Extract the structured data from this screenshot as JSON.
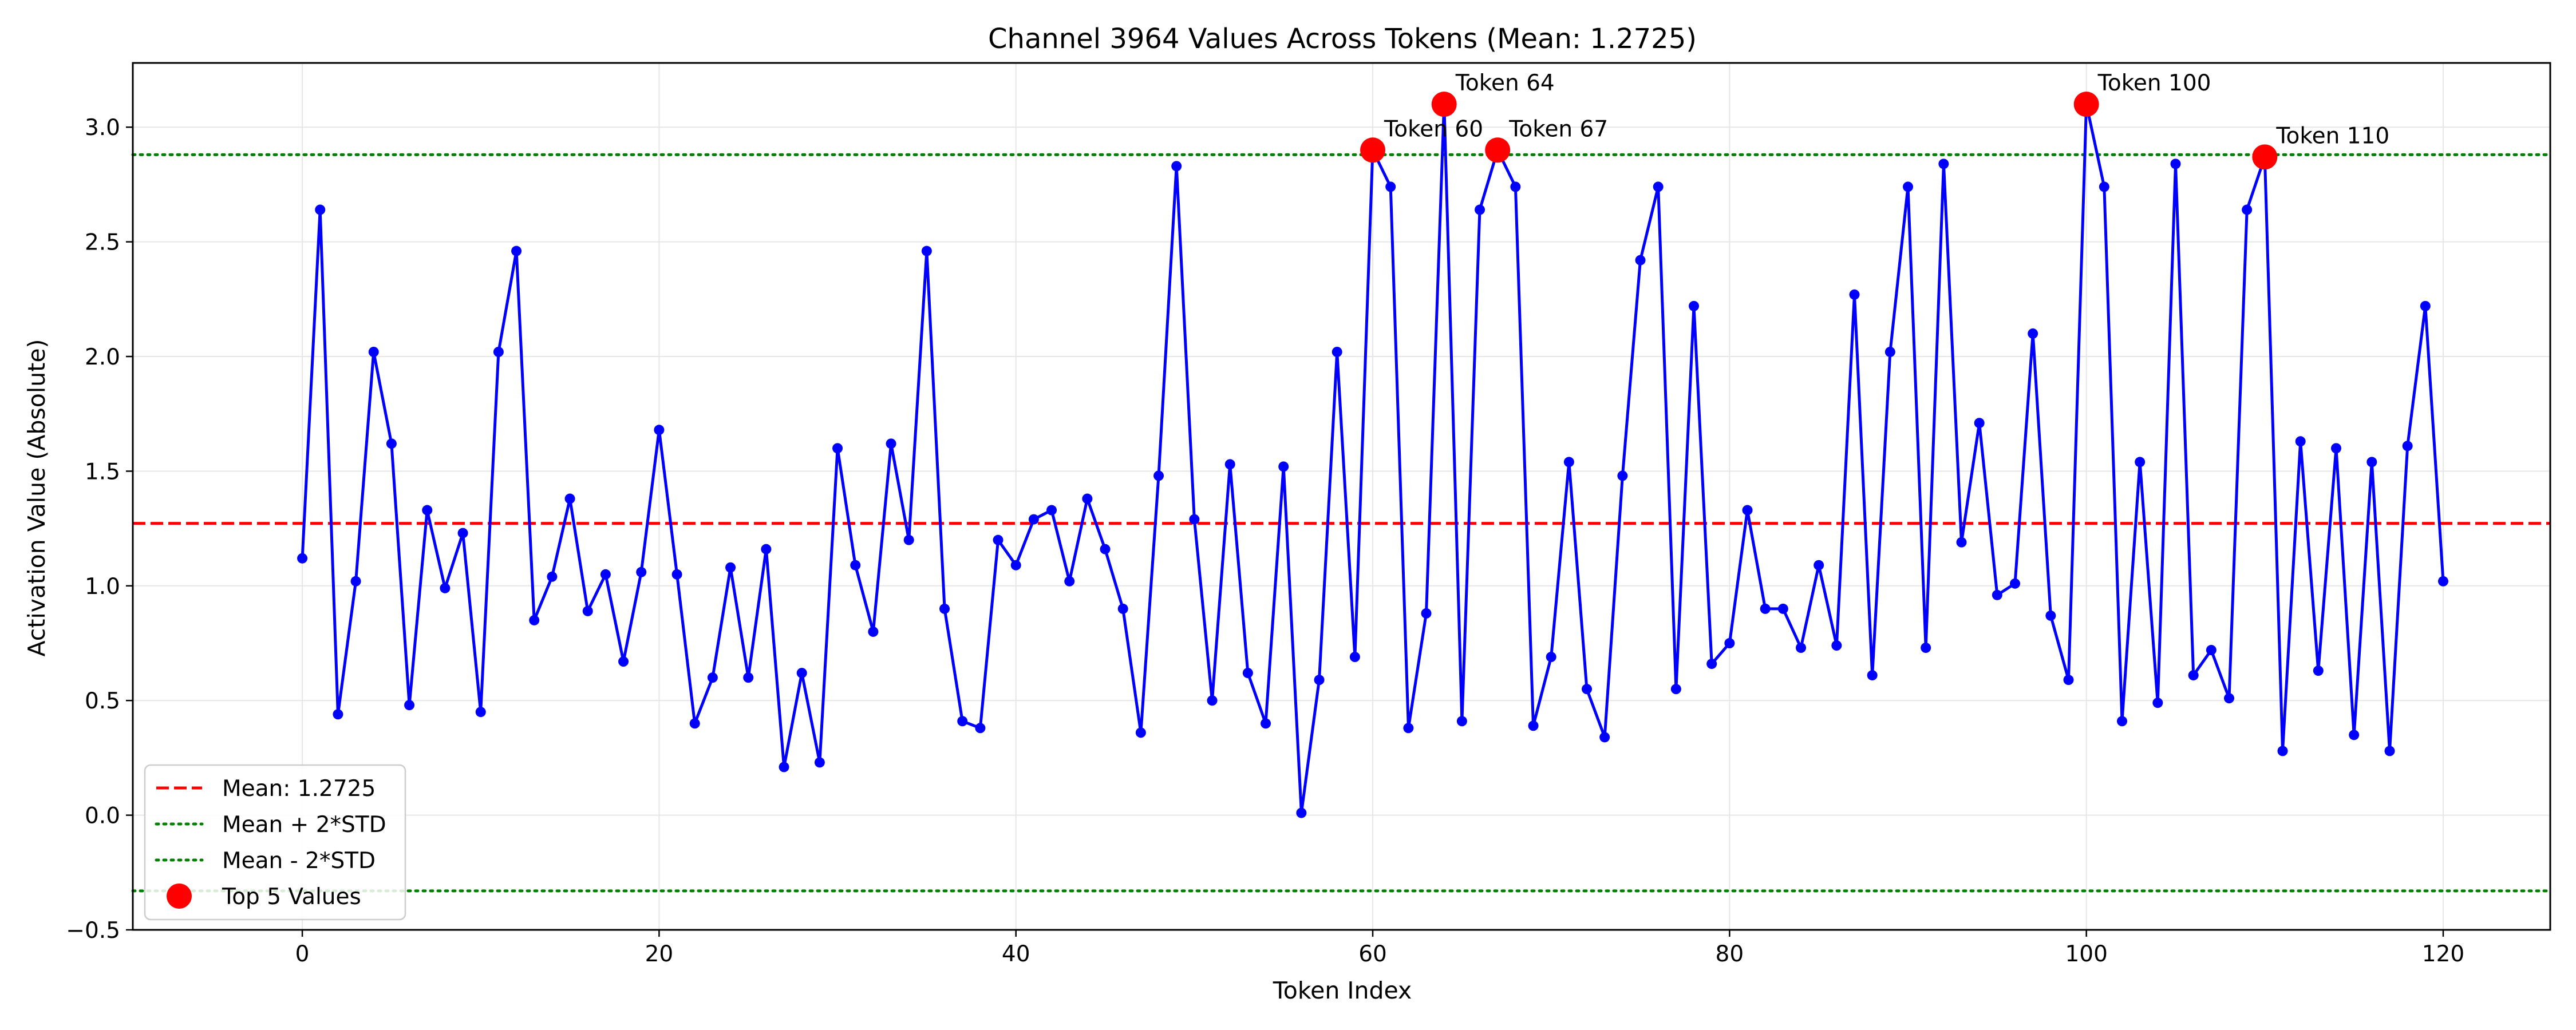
{
  "chart_data": {
    "type": "line",
    "title": "Channel 3964 Values Across Tokens (Mean: 1.2725)",
    "xlabel": "Token Index",
    "ylabel": "Activation Value (Absolute)",
    "xlim": [
      -9.5,
      126
    ],
    "ylim": [
      -0.5,
      3.28
    ],
    "xticks": [
      0,
      20,
      40,
      60,
      80,
      100,
      120
    ],
    "yticks": [
      -0.5,
      0.0,
      0.5,
      1.0,
      1.5,
      2.0,
      2.5,
      3.0
    ],
    "ytick_labels": [
      "−0.5",
      "0.0",
      "0.5",
      "1.0",
      "1.5",
      "2.0",
      "2.5",
      "3.0"
    ],
    "grid": true,
    "legend_position": "bottom-left",
    "series": [
      {
        "name": "",
        "color": "#0000ff",
        "marker": "circle",
        "x": [
          0,
          1,
          2,
          3,
          4,
          5,
          6,
          7,
          8,
          9,
          10,
          11,
          12,
          13,
          14,
          15,
          16,
          17,
          18,
          19,
          20,
          21,
          22,
          23,
          24,
          25,
          26,
          27,
          28,
          29,
          30,
          31,
          32,
          33,
          34,
          35,
          36,
          37,
          38,
          39,
          40,
          41,
          42,
          43,
          44,
          45,
          46,
          47,
          48,
          49,
          50,
          51,
          52,
          53,
          54,
          55,
          56,
          57,
          58,
          59,
          60,
          61,
          62,
          63,
          64,
          65,
          66,
          67,
          68,
          69,
          70,
          71,
          72,
          73,
          74,
          75,
          76,
          77,
          78,
          79,
          80,
          81,
          82,
          83,
          84,
          85,
          86,
          87,
          88,
          89,
          90,
          91,
          92,
          93,
          94,
          95,
          96,
          97,
          98,
          99,
          100,
          101,
          102,
          103,
          104,
          105,
          106,
          107,
          108,
          109,
          110,
          111,
          112,
          113,
          114,
          115,
          116,
          117,
          118,
          119,
          120
        ],
        "values": [
          1.12,
          2.64,
          0.44,
          1.02,
          2.02,
          1.62,
          0.48,
          1.33,
          0.99,
          1.23,
          0.45,
          2.02,
          2.46,
          0.85,
          1.04,
          1.38,
          0.89,
          1.05,
          0.67,
          1.06,
          1.68,
          1.05,
          0.4,
          0.6,
          1.08,
          0.6,
          1.16,
          0.21,
          0.62,
          0.23,
          1.6,
          1.09,
          0.8,
          1.62,
          1.2,
          2.46,
          0.9,
          0.41,
          0.38,
          1.2,
          1.09,
          1.29,
          1.33,
          1.02,
          1.38,
          1.16,
          0.9,
          0.36,
          1.48,
          2.83,
          1.29,
          0.5,
          1.53,
          0.62,
          0.4,
          1.52,
          0.01,
          0.59,
          2.02,
          0.69,
          2.9,
          2.74,
          0.38,
          0.88,
          3.1,
          0.41,
          2.64,
          2.9,
          2.74,
          0.39,
          0.69,
          1.54,
          0.55,
          0.34,
          1.48,
          2.42,
          2.74,
          0.55,
          2.22,
          0.66,
          0.75,
          1.33,
          0.9,
          0.9,
          0.73,
          1.09,
          0.74,
          2.27,
          0.61,
          2.02,
          2.74,
          0.73,
          2.84,
          1.19,
          1.71,
          0.96,
          1.01,
          2.1,
          0.87,
          0.59,
          3.1,
          2.74,
          0.41,
          1.54,
          0.49,
          2.84,
          0.61,
          0.72,
          0.51,
          2.64,
          2.87,
          0.28,
          1.63,
          0.63,
          1.6,
          0.35,
          1.54,
          0.28,
          1.61,
          2.22,
          1.02
        ]
      }
    ],
    "reference_lines": [
      {
        "label": "Mean: 1.2725",
        "y": 1.2725,
        "color": "#ff0000",
        "style": "dashed"
      },
      {
        "label": "Mean + 2*STD",
        "y": 2.88,
        "color": "#008000",
        "style": "dotted"
      },
      {
        "label": "Mean - 2*STD",
        "y": -0.33,
        "color": "#008000",
        "style": "dotted"
      }
    ],
    "highlights": {
      "label": "Top 5 Values",
      "color": "#ff0000",
      "points": [
        {
          "x": 60,
          "y": 2.9,
          "label": "Token 60"
        },
        {
          "x": 64,
          "y": 3.1,
          "label": "Token 64"
        },
        {
          "x": 67,
          "y": 2.9,
          "label": "Token 67"
        },
        {
          "x": 100,
          "y": 3.1,
          "label": "Token 100"
        },
        {
          "x": 110,
          "y": 2.87,
          "label": "Token 110"
        }
      ]
    }
  }
}
